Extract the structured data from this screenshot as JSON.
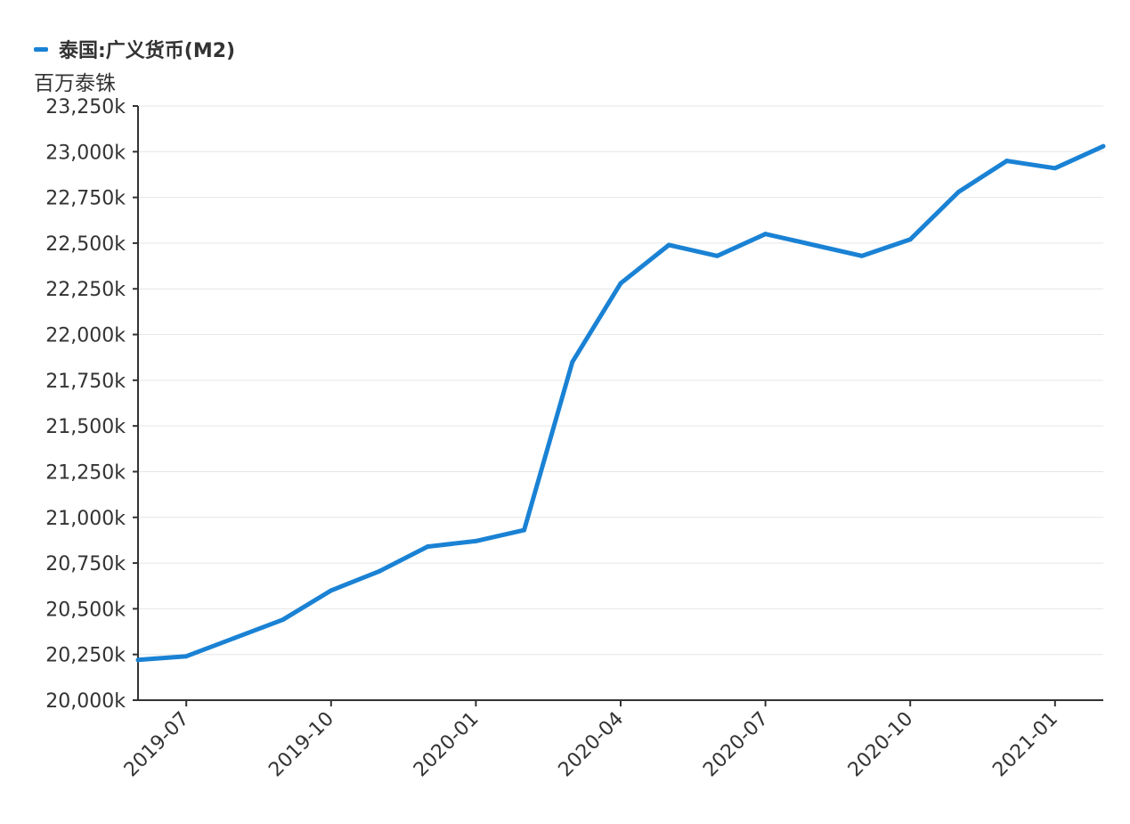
{
  "legend": {
    "label": "泰国:广义货币(M2)",
    "color": "#1a82d4"
  },
  "unit": "百万泰铢",
  "chart_data": {
    "type": "line",
    "series": [
      {
        "name": "泰国:广义货币(M2)",
        "color": "#1a82d4",
        "x": [
          "2019-06",
          "2019-07",
          "2019-08",
          "2019-09",
          "2019-10",
          "2019-11",
          "2019-12",
          "2020-01",
          "2020-02",
          "2020-03",
          "2020-04",
          "2020-05",
          "2020-06",
          "2020-07",
          "2020-08",
          "2020-09",
          "2020-10",
          "2020-11",
          "2020-12",
          "2021-01",
          "2021-02"
        ],
        "values": [
          20220,
          20240,
          20340,
          20440,
          20600,
          20705,
          20840,
          20870,
          20930,
          21850,
          22280,
          22490,
          22430,
          22550,
          22490,
          22430,
          22520,
          22780,
          22950,
          22910,
          23030
        ]
      }
    ],
    "ylim": [
      20000,
      23250
    ],
    "yticks": [
      20000,
      20250,
      20500,
      20750,
      21000,
      21250,
      21500,
      21750,
      22000,
      22250,
      22500,
      22750,
      23000,
      23250
    ],
    "ytick_labels": [
      "20,000k",
      "20,250k",
      "20,500k",
      "20,750k",
      "21,000k",
      "21,250k",
      "21,500k",
      "21,750k",
      "22,000k",
      "22,250k",
      "22,500k",
      "22,750k",
      "23,000k",
      "23,250k"
    ],
    "xticks": [
      "2019-07",
      "2019-10",
      "2020-01",
      "2020-04",
      "2020-07",
      "2020-10",
      "2021-01"
    ],
    "grid": true,
    "legend_position": "top-left"
  }
}
